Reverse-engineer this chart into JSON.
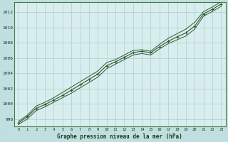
{
  "title": "Graphe pression niveau de la mer (hPa)",
  "background_color": "#c0dfe0",
  "plot_bg_color": "#d8eeee",
  "line_color": "#2d5a2d",
  "marker_color": "#2d5a2d",
  "grid_color": "#b0cccc",
  "x_values": [
    0,
    1,
    2,
    3,
    4,
    5,
    6,
    7,
    8,
    9,
    10,
    11,
    12,
    13,
    14,
    15,
    16,
    17,
    18,
    19,
    20,
    21,
    22,
    23
  ],
  "y_main": [
    997.5,
    998.3,
    999.4,
    999.9,
    1000.5,
    1001.1,
    1001.8,
    1002.5,
    1003.2,
    1003.9,
    1005.0,
    1005.5,
    1006.1,
    1006.7,
    1006.9,
    1006.7,
    1007.5,
    1008.2,
    1008.8,
    1009.3,
    1010.2,
    1011.8,
    1012.4,
    1013.1
  ],
  "y_upper": [
    997.7,
    998.5,
    999.7,
    1000.2,
    1000.8,
    1001.5,
    1002.2,
    1002.9,
    1003.6,
    1004.3,
    1005.4,
    1005.8,
    1006.4,
    1007.0,
    1007.1,
    1006.9,
    1007.8,
    1008.6,
    1009.2,
    1009.8,
    1010.7,
    1012.1,
    1012.7,
    1013.4
  ],
  "y_lower": [
    997.3,
    998.0,
    999.1,
    999.6,
    1000.2,
    1000.8,
    1001.4,
    1002.1,
    1002.8,
    1003.5,
    1004.6,
    1005.2,
    1005.8,
    1006.4,
    1006.6,
    1006.4,
    1007.2,
    1007.9,
    1008.4,
    1008.9,
    1009.8,
    1011.5,
    1012.1,
    1012.8
  ],
  "ylim": [
    997,
    1013
  ],
  "xlim": [
    -0.5,
    23.5
  ],
  "yticks": [
    998,
    1000,
    1002,
    1004,
    1006,
    1008,
    1010,
    1012
  ],
  "xticks": [
    0,
    1,
    2,
    3,
    4,
    5,
    6,
    7,
    8,
    9,
    10,
    11,
    12,
    13,
    14,
    15,
    16,
    17,
    18,
    19,
    20,
    21,
    22,
    23
  ]
}
